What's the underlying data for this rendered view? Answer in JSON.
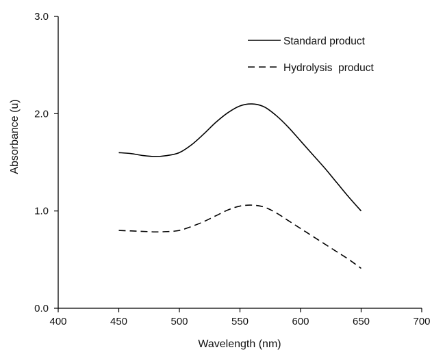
{
  "chart_data": {
    "type": "line",
    "title": "",
    "xlabel": "Wavelength (nm)",
    "ylabel": "Absorbance (u)",
    "xlim": [
      400,
      700
    ],
    "ylim": [
      0.0,
      3.0
    ],
    "x_ticks": [
      "400",
      "450",
      "500",
      "550",
      "600",
      "650",
      "700"
    ],
    "y_ticks": [
      "0.0",
      "1.0",
      "2.0",
      "3.0"
    ],
    "grid": false,
    "legend_position": "top-right",
    "series": [
      {
        "name": "Standard product",
        "line_style": "solid",
        "color": "#000000",
        "x": [
          450,
          460,
          470,
          480,
          490,
          500,
          510,
          520,
          530,
          540,
          550,
          560,
          570,
          580,
          590,
          600,
          610,
          620,
          630,
          640,
          650
        ],
        "y": [
          1.6,
          1.59,
          1.57,
          1.56,
          1.57,
          1.6,
          1.68,
          1.79,
          1.91,
          2.01,
          2.08,
          2.1,
          2.07,
          1.98,
          1.86,
          1.72,
          1.58,
          1.44,
          1.29,
          1.14,
          1.0
        ]
      },
      {
        "name": "Hydrolysis  product",
        "line_style": "dashed",
        "color": "#000000",
        "x": [
          450,
          460,
          470,
          480,
          490,
          500,
          510,
          520,
          530,
          540,
          550,
          560,
          570,
          580,
          590,
          600,
          610,
          620,
          630,
          640,
          650
        ],
        "y": [
          0.8,
          0.795,
          0.79,
          0.785,
          0.788,
          0.8,
          0.84,
          0.89,
          0.95,
          1.01,
          1.05,
          1.06,
          1.04,
          0.98,
          0.9,
          0.82,
          0.74,
          0.66,
          0.58,
          0.5,
          0.41
        ]
      }
    ]
  }
}
